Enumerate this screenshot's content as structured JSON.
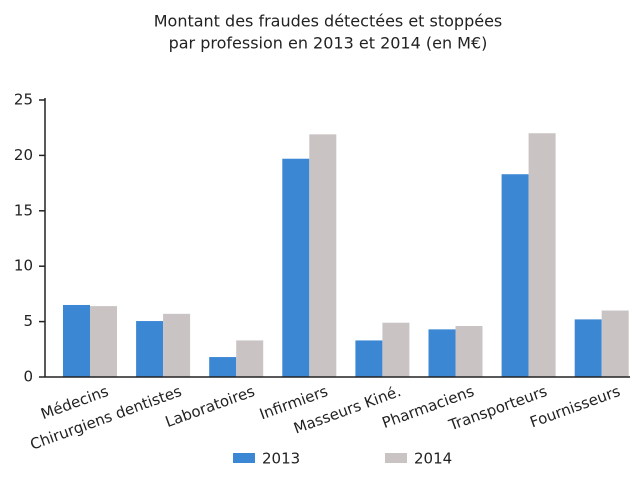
{
  "chart_data": {
    "type": "bar",
    "title": [
      "Montant des fraudes détectées et stoppées",
      "par profession en 2013 et 2014 (en M€)"
    ],
    "categories": [
      "Médecins",
      "Chirurgiens dentistes",
      "Laboratoires",
      "Infirmiers",
      "Masseurs Kiné.",
      "Pharmaciens",
      "Transporteurs",
      "Fournisseurs"
    ],
    "series": [
      {
        "name": "2013",
        "color": "#3b87d3",
        "values": [
          6.5,
          5.05,
          1.8,
          19.7,
          3.3,
          4.3,
          18.3,
          5.2
        ]
      },
      {
        "name": "2014",
        "color": "#c9c3c3",
        "values": [
          6.4,
          5.7,
          3.3,
          21.9,
          4.9,
          4.6,
          22.0,
          6.0
        ]
      }
    ],
    "ylim": [
      0,
      25
    ],
    "yticks": [
      0,
      5,
      10,
      15,
      20,
      25
    ],
    "grid": false
  }
}
